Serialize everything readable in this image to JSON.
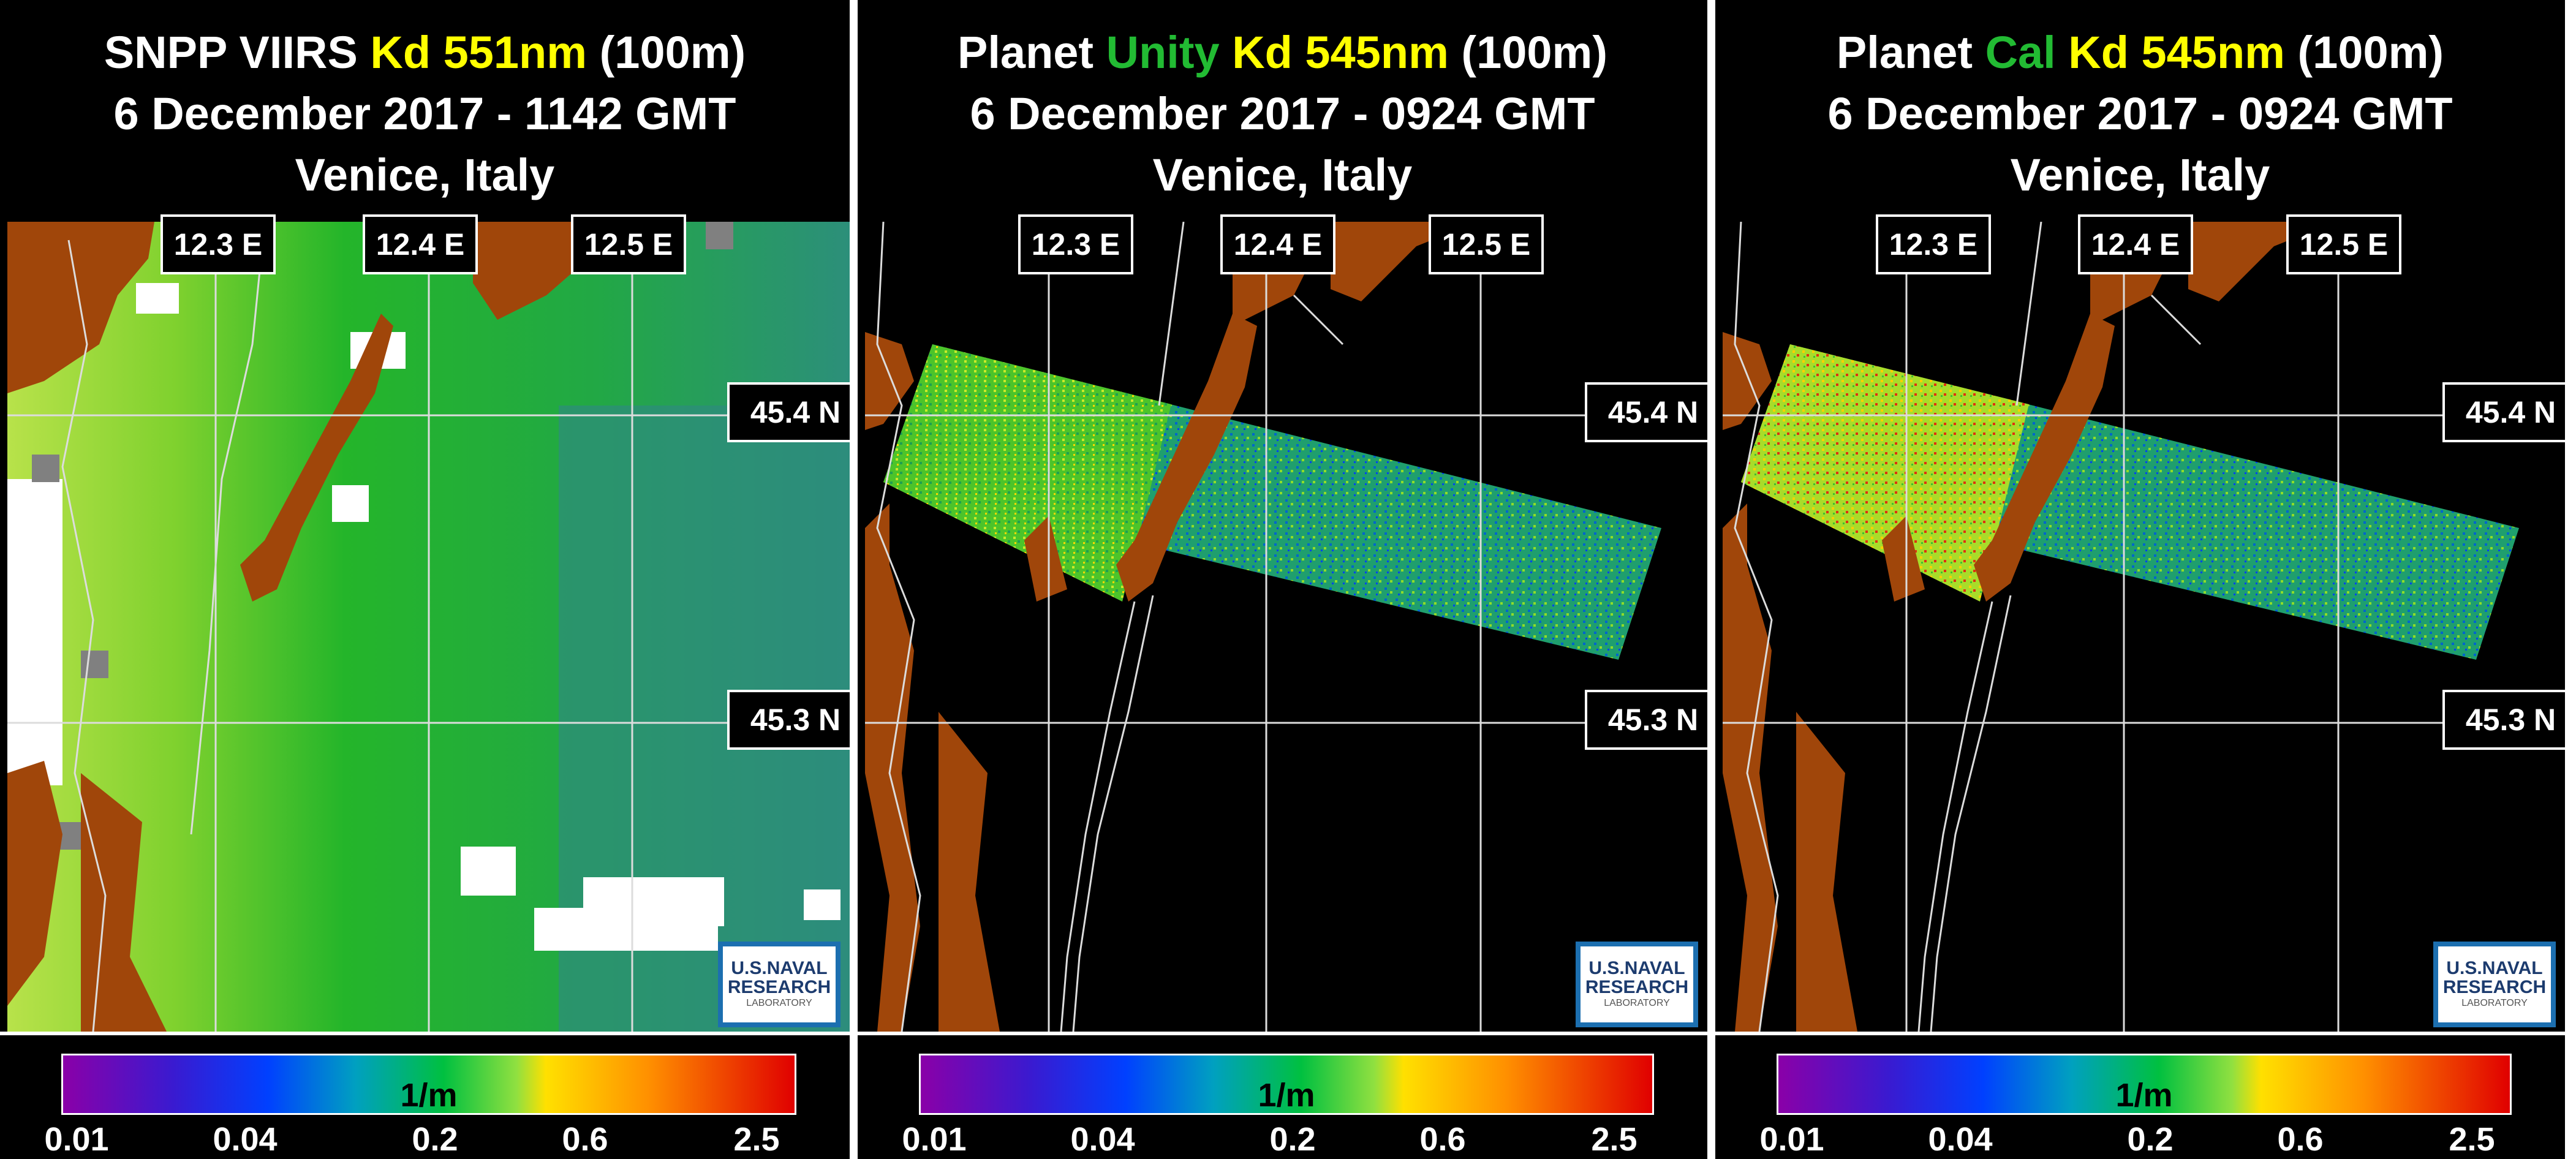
{
  "colors": {
    "land": "#a0460a",
    "land_vector": "#dcdcdc",
    "mask_gray": "#808080",
    "yellow_text": "#ffff00",
    "green_text": "#22bb33",
    "nrl_blue": "#1c6fb0"
  },
  "panels": [
    {
      "title": {
        "line1": [
          {
            "text": "SNPP VIIRS ",
            "color": "#ffffff"
          },
          {
            "text": "Kd 551nm",
            "color": "#ffff00"
          },
          {
            "text": " (100m)",
            "color": "#ffffff"
          }
        ],
        "line2": "6 December 2017 - 1142 GMT",
        "line3": "Venice, Italy"
      },
      "lon_labels": [
        "12.3 E",
        "12.4 E",
        "12.5 E"
      ],
      "lat_labels": [
        "45.4 N",
        "45.3 N"
      ],
      "logo": {
        "line1": "U.S.NAVAL",
        "line2": "RESEARCH",
        "line3": "LABORATORY"
      },
      "colorbar": {
        "unit": "1/m",
        "ticks": [
          "0.01",
          "0.04",
          "0.2",
          "0.6",
          "2.5"
        ]
      }
    },
    {
      "title": {
        "line1": [
          {
            "text": "Planet ",
            "color": "#ffffff"
          },
          {
            "text": "Unity",
            "color": "#22bb33"
          },
          {
            "text": " Kd 545nm",
            "color": "#ffff00"
          },
          {
            "text": " (100m)",
            "color": "#ffffff"
          }
        ],
        "line2": "6 December 2017 - 0924 GMT",
        "line3": "Venice, Italy"
      },
      "lon_labels": [
        "12.3 E",
        "12.4 E",
        "12.5 E"
      ],
      "lat_labels": [
        "45.4 N",
        "45.3 N"
      ],
      "logo": {
        "line1": "U.S.NAVAL",
        "line2": "RESEARCH",
        "line3": "LABORATORY"
      },
      "colorbar": {
        "unit": "1/m",
        "ticks": [
          "0.01",
          "0.04",
          "0.2",
          "0.6",
          "2.5"
        ]
      }
    },
    {
      "title": {
        "line1": [
          {
            "text": "Planet ",
            "color": "#ffffff"
          },
          {
            "text": "Cal",
            "color": "#22bb33"
          },
          {
            "text": " Kd 545nm",
            "color": "#ffff00"
          },
          {
            "text": " (100m)",
            "color": "#ffffff"
          }
        ],
        "line2": "6 December 2017 - 0924 GMT",
        "line3": "Venice, Italy"
      },
      "lon_labels": [
        "12.3 E",
        "12.4 E",
        "12.5 E"
      ],
      "lat_labels": [
        "45.4 N",
        "45.3 N"
      ],
      "logo": {
        "line1": "U.S.NAVAL",
        "line2": "RESEARCH",
        "line3": "LABORATORY"
      },
      "colorbar": {
        "unit": "1/m",
        "ticks": [
          "0.01",
          "0.04",
          "0.2",
          "0.6",
          "2.5"
        ]
      }
    }
  ]
}
